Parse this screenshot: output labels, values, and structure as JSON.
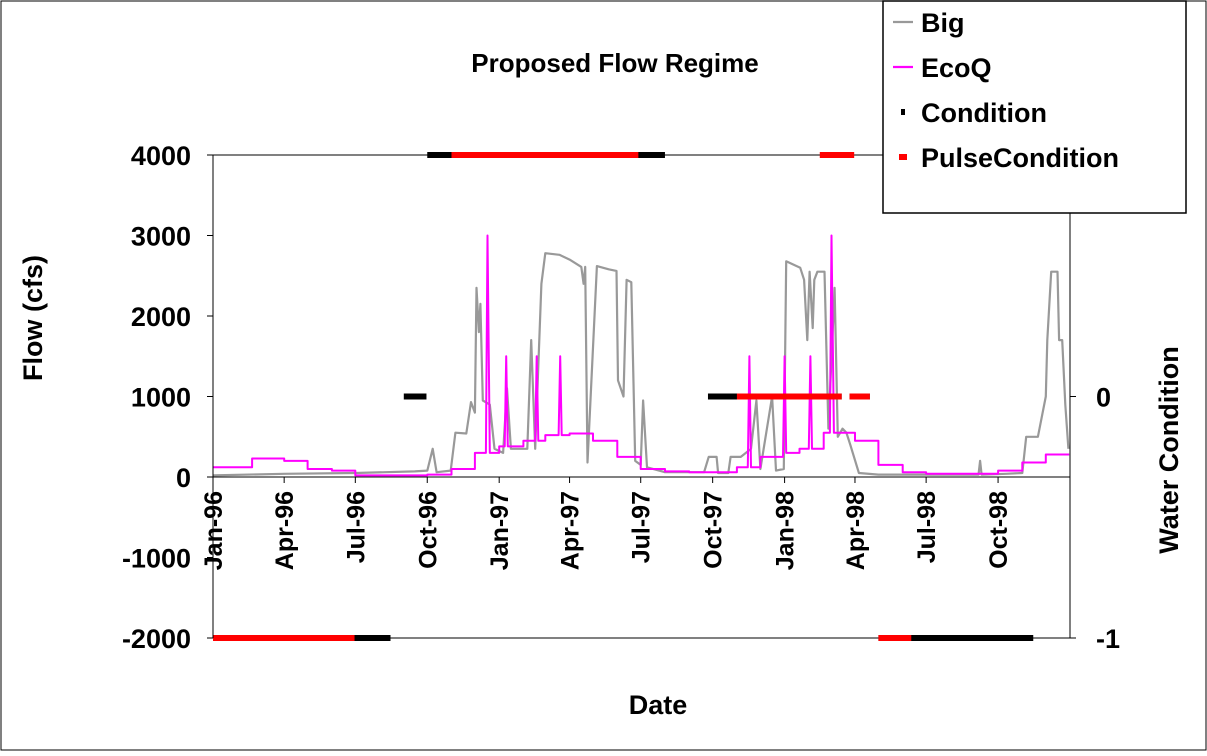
{
  "chart_data": {
    "type": "line",
    "title": "Proposed Flow Regime",
    "xlabel": "Date",
    "ylabel": "Flow (cfs)",
    "y2label": "Water Condition",
    "x_range": [
      "1996-01-01",
      "1998-12-31"
    ],
    "ylim": [
      -2000,
      4000
    ],
    "y_ticks": [
      4000,
      3000,
      2000,
      1000,
      0,
      -1000,
      -2000
    ],
    "y_tick_labels": [
      "4000",
      "3000",
      "2000",
      "1000",
      "0",
      "-1000",
      "-2000"
    ],
    "y2lim": [
      -1,
      1
    ],
    "y2_ticks": [
      0,
      -1
    ],
    "y2_tick_labels": [
      "0",
      "-1"
    ],
    "x_ticks": [
      "1996-01-01",
      "1996-04-01",
      "1996-07-01",
      "1996-10-01",
      "1997-01-01",
      "1997-04-01",
      "1997-07-01",
      "1997-10-01",
      "1998-01-01",
      "1998-04-01",
      "1998-07-01",
      "1998-10-01"
    ],
    "x_tick_labels": [
      "Jan-96",
      "Apr-96",
      "Jul-96",
      "Oct-96",
      "Jan-97",
      "Apr-97",
      "Jul-97",
      "Oct-97",
      "Jan-98",
      "Apr-98",
      "Jul-98",
      "Oct-98"
    ],
    "grid": false,
    "legend_position": "top-right",
    "series": [
      {
        "name": "Big",
        "color": "#999999",
        "axis": "left",
        "style": "line",
        "points": [
          [
            "1996-01-01",
            20
          ],
          [
            "1996-04-01",
            40
          ],
          [
            "1996-07-01",
            50
          ],
          [
            "1996-09-15",
            70
          ],
          [
            "1996-10-01",
            80
          ],
          [
            "1996-10-08",
            350
          ],
          [
            "1996-10-13",
            60
          ],
          [
            "1996-10-31",
            80
          ],
          [
            "1996-11-06",
            550
          ],
          [
            "1996-11-20",
            540
          ],
          [
            "1996-11-26",
            930
          ],
          [
            "1996-12-01",
            800
          ],
          [
            "1996-12-03",
            2350
          ],
          [
            "1996-12-06",
            1800
          ],
          [
            "1996-12-08",
            2150
          ],
          [
            "1996-12-11",
            950
          ],
          [
            "1996-12-20",
            900
          ],
          [
            "1996-12-26",
            350
          ],
          [
            "1997-01-06",
            300
          ],
          [
            "1997-01-11",
            1100
          ],
          [
            "1997-01-16",
            350
          ],
          [
            "1997-02-06",
            350
          ],
          [
            "1997-02-11",
            1700
          ],
          [
            "1997-02-16",
            350
          ],
          [
            "1997-02-24",
            2400
          ],
          [
            "1997-03-01",
            2780
          ],
          [
            "1997-03-19",
            2760
          ],
          [
            "1997-04-01",
            2700
          ],
          [
            "1997-04-16",
            2610
          ],
          [
            "1997-04-19",
            2400
          ],
          [
            "1997-04-21",
            2610
          ],
          [
            "1997-04-24",
            180
          ],
          [
            "1997-05-06",
            2620
          ],
          [
            "1997-05-21",
            2580
          ],
          [
            "1997-05-31",
            2560
          ],
          [
            "1997-06-02",
            1200
          ],
          [
            "1997-06-09",
            1000
          ],
          [
            "1997-06-13",
            2450
          ],
          [
            "1997-06-19",
            2420
          ],
          [
            "1997-06-24",
            200
          ],
          [
            "1997-07-01",
            150
          ],
          [
            "1997-07-04",
            950
          ],
          [
            "1997-07-09",
            120
          ],
          [
            "1997-08-01",
            60
          ],
          [
            "1997-09-20",
            60
          ],
          [
            "1997-09-26",
            250
          ],
          [
            "1997-10-06",
            250
          ],
          [
            "1997-10-08",
            50
          ],
          [
            "1997-10-21",
            50
          ],
          [
            "1997-10-24",
            250
          ],
          [
            "1997-11-06",
            250
          ],
          [
            "1997-11-19",
            350
          ],
          [
            "1997-11-26",
            950
          ],
          [
            "1997-12-01",
            100
          ],
          [
            "1997-12-16",
            1000
          ],
          [
            "1997-12-21",
            80
          ],
          [
            "1997-12-31",
            100
          ],
          [
            "1998-01-03",
            2680
          ],
          [
            "1998-01-21",
            2600
          ],
          [
            "1998-01-26",
            2450
          ],
          [
            "1998-01-30",
            1700
          ],
          [
            "1998-02-02",
            2550
          ],
          [
            "1998-02-06",
            1850
          ],
          [
            "1998-02-08",
            2450
          ],
          [
            "1998-02-12",
            2550
          ],
          [
            "1998-02-21",
            2550
          ],
          [
            "1998-02-26",
            600
          ],
          [
            "1998-03-06",
            2350
          ],
          [
            "1998-03-10",
            500
          ],
          [
            "1998-03-16",
            600
          ],
          [
            "1998-03-21",
            550
          ],
          [
            "1998-03-26",
            400
          ],
          [
            "1998-04-06",
            50
          ],
          [
            "1998-05-01",
            30
          ],
          [
            "1998-08-01",
            30
          ],
          [
            "1998-09-06",
            30
          ],
          [
            "1998-09-08",
            200
          ],
          [
            "1998-09-10",
            30
          ],
          [
            "1998-10-11",
            40
          ],
          [
            "1998-11-01",
            50
          ],
          [
            "1998-11-06",
            500
          ],
          [
            "1998-11-21",
            500
          ],
          [
            "1998-12-01",
            1000
          ],
          [
            "1998-12-03",
            1700
          ],
          [
            "1998-12-08",
            2550
          ],
          [
            "1998-12-16",
            2550
          ],
          [
            "1998-12-18",
            1700
          ],
          [
            "1998-12-22",
            1700
          ],
          [
            "1998-12-26",
            900
          ],
          [
            "1998-12-30",
            350
          ]
        ]
      },
      {
        "name": "EcoQ",
        "color": "#ff00ff",
        "axis": "left",
        "style": "line",
        "points": [
          [
            "1996-01-01",
            120
          ],
          [
            "1996-02-20",
            120
          ],
          [
            "1996-02-20",
            230
          ],
          [
            "1996-04-01",
            230
          ],
          [
            "1996-04-01",
            200
          ],
          [
            "1996-05-01",
            200
          ],
          [
            "1996-05-01",
            100
          ],
          [
            "1996-06-01",
            100
          ],
          [
            "1996-06-01",
            80
          ],
          [
            "1996-07-01",
            80
          ],
          [
            "1996-07-01",
            20
          ],
          [
            "1996-08-01",
            20
          ],
          [
            "1996-08-01",
            20
          ],
          [
            "1996-10-01",
            20
          ],
          [
            "1996-10-01",
            30
          ],
          [
            "1996-11-01",
            30
          ],
          [
            "1996-11-01",
            100
          ],
          [
            "1996-12-01",
            100
          ],
          [
            "1996-12-01",
            300
          ],
          [
            "1996-12-15",
            300
          ],
          [
            "1996-12-17",
            3000
          ],
          [
            "1996-12-20",
            300
          ],
          [
            "1997-01-01",
            300
          ],
          [
            "1997-01-01",
            380
          ],
          [
            "1997-01-08",
            380
          ],
          [
            "1997-01-10",
            1500
          ],
          [
            "1997-01-12",
            380
          ],
          [
            "1997-02-01",
            380
          ],
          [
            "1997-02-01",
            450
          ],
          [
            "1997-02-16",
            450
          ],
          [
            "1997-02-18",
            1500
          ],
          [
            "1997-02-20",
            450
          ],
          [
            "1997-03-01",
            450
          ],
          [
            "1997-03-01",
            520
          ],
          [
            "1997-03-18",
            520
          ],
          [
            "1997-03-20",
            1500
          ],
          [
            "1997-03-22",
            520
          ],
          [
            "1997-04-01",
            520
          ],
          [
            "1997-04-01",
            540
          ],
          [
            "1997-05-01",
            540
          ],
          [
            "1997-05-01",
            450
          ],
          [
            "1997-06-01",
            450
          ],
          [
            "1997-06-01",
            250
          ],
          [
            "1997-07-01",
            250
          ],
          [
            "1997-07-01",
            100
          ],
          [
            "1997-08-01",
            100
          ],
          [
            "1997-08-01",
            70
          ],
          [
            "1997-09-01",
            70
          ],
          [
            "1997-09-01",
            60
          ],
          [
            "1997-11-01",
            60
          ],
          [
            "1997-11-01",
            120
          ],
          [
            "1997-11-15",
            120
          ],
          [
            "1997-11-17",
            1500
          ],
          [
            "1997-11-19",
            120
          ],
          [
            "1997-12-01",
            120
          ],
          [
            "1997-12-01",
            250
          ],
          [
            "1997-12-30",
            250
          ],
          [
            "1998-01-01",
            1500
          ],
          [
            "1998-01-03",
            300
          ],
          [
            "1998-01-20",
            300
          ],
          [
            "1998-01-20",
            350
          ],
          [
            "1998-02-01",
            350
          ],
          [
            "1998-02-03",
            1500
          ],
          [
            "1998-02-05",
            350
          ],
          [
            "1998-02-20",
            350
          ],
          [
            "1998-02-20",
            550
          ],
          [
            "1998-02-28",
            550
          ],
          [
            "1998-03-02",
            3000
          ],
          [
            "1998-03-05",
            550
          ],
          [
            "1998-04-01",
            550
          ],
          [
            "1998-04-01",
            450
          ],
          [
            "1998-05-01",
            450
          ],
          [
            "1998-05-01",
            150
          ],
          [
            "1998-06-01",
            150
          ],
          [
            "1998-06-01",
            60
          ],
          [
            "1998-07-01",
            60
          ],
          [
            "1998-07-01",
            40
          ],
          [
            "1998-10-01",
            40
          ],
          [
            "1998-10-01",
            80
          ],
          [
            "1998-11-01",
            80
          ],
          [
            "1998-11-01",
            180
          ],
          [
            "1998-12-01",
            180
          ],
          [
            "1998-12-01",
            280
          ],
          [
            "1998-12-31",
            280
          ]
        ]
      },
      {
        "name": "Condition",
        "color": "#000000",
        "axis": "right",
        "style": "segments",
        "segments": [
          {
            "start": "1996-01-01",
            "end": "1996-08-15",
            "value": -1
          },
          {
            "start": "1996-09-01",
            "end": "1996-09-30",
            "value": 0
          },
          {
            "start": "1996-10-01",
            "end": "1997-08-01",
            "value": 1
          },
          {
            "start": "1997-09-25",
            "end": "1998-03-15",
            "value": 0
          },
          {
            "start": "1998-03-25",
            "end": "1998-04-20",
            "value": 0
          },
          {
            "start": "1998-05-01",
            "end": "1998-11-15",
            "value": -1
          }
        ]
      },
      {
        "name": "PulseCondition",
        "color": "#ff0000",
        "axis": "right",
        "style": "segments",
        "segments": [
          {
            "start": "1996-01-01",
            "end": "1996-06-30",
            "value": -1
          },
          {
            "start": "1996-11-01",
            "end": "1997-06-28",
            "value": 1
          },
          {
            "start": "1997-11-01",
            "end": "1998-03-15",
            "value": 0
          },
          {
            "start": "1998-02-15",
            "end": "1998-03-31",
            "value": 1
          },
          {
            "start": "1998-03-25",
            "end": "1998-04-20",
            "value": 0
          },
          {
            "start": "1998-05-01",
            "end": "1998-06-12",
            "value": -1
          }
        ]
      }
    ]
  }
}
